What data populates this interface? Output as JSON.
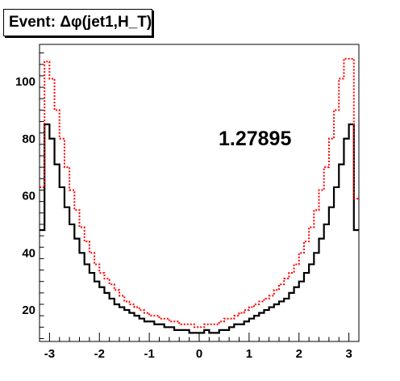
{
  "chart_data": {
    "type": "step-histogram",
    "title": "Event: Δφ(jet1,H_T)",
    "annotation": "1.27895",
    "xlim": [
      -3.2,
      3.2
    ],
    "ylim": [
      9,
      113
    ],
    "x_ticks": [
      -3,
      -2,
      -1,
      0,
      1,
      2,
      3
    ],
    "y_ticks": [
      20,
      40,
      60,
      80,
      100
    ],
    "x_tick_labels": [
      "-3",
      "-2",
      "-1",
      "0",
      "1",
      "2",
      "3"
    ],
    "y_tick_labels": [
      "20",
      "40",
      "60",
      "80",
      "100"
    ],
    "bin_edges": [
      -3.2,
      -3.1,
      -3.0,
      -2.9,
      -2.8,
      -2.7,
      -2.6,
      -2.5,
      -2.4,
      -2.3,
      -2.2,
      -2.1,
      -2.0,
      -1.9,
      -1.8,
      -1.7,
      -1.6,
      -1.5,
      -1.4,
      -1.3,
      -1.2,
      -1.1,
      -1.0,
      -0.9,
      -0.8,
      -0.7,
      -0.6,
      -0.5,
      -0.4,
      -0.3,
      -0.2,
      -0.1,
      0.0,
      0.1,
      0.2,
      0.3,
      0.4,
      0.5,
      0.6,
      0.7,
      0.8,
      0.9,
      1.0,
      1.1,
      1.2,
      1.3,
      1.4,
      1.5,
      1.6,
      1.7,
      1.8,
      1.9,
      2.0,
      2.1,
      2.2,
      2.3,
      2.4,
      2.5,
      2.6,
      2.7,
      2.8,
      2.9,
      3.0,
      3.1,
      3.2
    ],
    "series": [
      {
        "color": "#000000",
        "style": "solid",
        "values": [
          48,
          85,
          80,
          71,
          63,
          56,
          50,
          45,
          40,
          36,
          33,
          30,
          28,
          26,
          24,
          22,
          21,
          20,
          19,
          18,
          17,
          16,
          16,
          15,
          15,
          14,
          14,
          13,
          13,
          13,
          12,
          12,
          12,
          13,
          12,
          12,
          13,
          13,
          14,
          15,
          15,
          16,
          17,
          18,
          19,
          20,
          21,
          22,
          23,
          24,
          26,
          28,
          30,
          33,
          36,
          40,
          45,
          50,
          56,
          63,
          71,
          80,
          85,
          48
        ]
      },
      {
        "color": "#ff0000",
        "style": "dotted",
        "values": [
          63,
          107,
          101,
          90,
          80,
          70,
          62,
          55,
          49,
          44,
          40,
          36,
          33,
          31,
          29,
          27,
          25,
          23,
          22,
          21,
          20,
          19,
          18,
          18,
          17,
          17,
          16,
          16,
          15,
          15,
          15,
          14,
          14,
          15,
          15,
          15,
          16,
          17,
          17,
          18,
          19,
          20,
          21,
          22,
          23,
          24,
          25,
          27,
          29,
          31,
          33,
          36,
          40,
          44,
          49,
          55,
          62,
          70,
          80,
          90,
          101,
          108,
          108,
          59
        ]
      }
    ]
  }
}
